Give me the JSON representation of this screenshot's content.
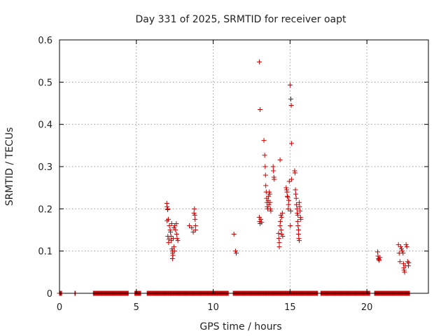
{
  "chart_data": {
    "type": "scatter",
    "title": "Day 331 of 2025, SRMTID for receiver oapt",
    "xlabel": "GPS time / hours",
    "ylabel": "SRMTID / TECUs",
    "xlim": [
      0,
      24
    ],
    "ylim": [
      0,
      0.6
    ],
    "x_ticks": [
      0,
      5,
      10,
      15,
      20
    ],
    "y_ticks": [
      0,
      0.1,
      0.2,
      0.3,
      0.4,
      0.5,
      0.6
    ],
    "x_tick_labels": [
      "0",
      "5",
      "10",
      "15",
      "20"
    ],
    "y_tick_labels": [
      "0",
      "0.1",
      "0.2",
      "0.3",
      "0.4",
      "0.5",
      "0.6"
    ],
    "grid": true,
    "marker": "+",
    "marker_color": "#cc0000",
    "zero_segments": [
      [
        0.0,
        0.15
      ],
      [
        1.0,
        1.05
      ],
      [
        2.2,
        4.5
      ],
      [
        4.9,
        5.3
      ],
      [
        5.7,
        11.0
      ],
      [
        11.3,
        16.8
      ],
      [
        17.0,
        20.2
      ],
      [
        20.5,
        22.8
      ]
    ],
    "points": [
      [
        6.98,
        0.213
      ],
      [
        7.0,
        0.205
      ],
      [
        7.03,
        0.198
      ],
      [
        7.05,
        0.2
      ],
      [
        7.08,
        0.175
      ],
      [
        7.0,
        0.172
      ],
      [
        7.05,
        0.135
      ],
      [
        7.1,
        0.12
      ],
      [
        7.12,
        0.128
      ],
      [
        7.15,
        0.16
      ],
      [
        7.2,
        0.15
      ],
      [
        7.22,
        0.145
      ],
      [
        7.25,
        0.135
      ],
      [
        7.27,
        0.125
      ],
      [
        7.3,
        0.165
      ],
      [
        7.32,
        0.105
      ],
      [
        7.35,
        0.1
      ],
      [
        7.36,
        0.095
      ],
      [
        7.38,
        0.09
      ],
      [
        7.35,
        0.082
      ],
      [
        7.4,
        0.13
      ],
      [
        7.45,
        0.155
      ],
      [
        7.45,
        0.11
      ],
      [
        7.48,
        0.1
      ],
      [
        7.5,
        0.16
      ],
      [
        7.55,
        0.15
      ],
      [
        7.6,
        0.165
      ],
      [
        7.62,
        0.14
      ],
      [
        7.65,
        0.13
      ],
      [
        7.7,
        0.125
      ],
      [
        8.45,
        0.16
      ],
      [
        8.6,
        0.155
      ],
      [
        8.7,
        0.145
      ],
      [
        8.75,
        0.19
      ],
      [
        8.78,
        0.2
      ],
      [
        8.8,
        0.185
      ],
      [
        8.82,
        0.175
      ],
      [
        8.85,
        0.16
      ],
      [
        8.85,
        0.15
      ],
      [
        11.35,
        0.14
      ],
      [
        11.45,
        0.1
      ],
      [
        11.5,
        0.095
      ],
      [
        13.0,
        0.548
      ],
      [
        13.05,
        0.435
      ],
      [
        13.0,
        0.18
      ],
      [
        13.02,
        0.17
      ],
      [
        13.05,
        0.165
      ],
      [
        13.1,
        0.175
      ],
      [
        13.15,
        0.168
      ],
      [
        13.3,
        0.362
      ],
      [
        13.35,
        0.327
      ],
      [
        13.38,
        0.3
      ],
      [
        13.4,
        0.28
      ],
      [
        13.42,
        0.255
      ],
      [
        13.45,
        0.24
      ],
      [
        13.48,
        0.225
      ],
      [
        13.5,
        0.215
      ],
      [
        13.52,
        0.205
      ],
      [
        13.55,
        0.2
      ],
      [
        13.58,
        0.22
      ],
      [
        13.6,
        0.23
      ],
      [
        13.62,
        0.21
      ],
      [
        13.65,
        0.24
      ],
      [
        13.68,
        0.235
      ],
      [
        13.7,
        0.215
      ],
      [
        13.72,
        0.2
      ],
      [
        13.75,
        0.195
      ],
      [
        13.9,
        0.3
      ],
      [
        13.92,
        0.29
      ],
      [
        13.95,
        0.275
      ],
      [
        13.97,
        0.27
      ],
      [
        14.25,
        0.142
      ],
      [
        14.27,
        0.13
      ],
      [
        14.3,
        0.12
      ],
      [
        14.3,
        0.11
      ],
      [
        14.35,
        0.316
      ],
      [
        14.35,
        0.16
      ],
      [
        14.37,
        0.17
      ],
      [
        14.4,
        0.185
      ],
      [
        14.42,
        0.15
      ],
      [
        14.45,
        0.14
      ],
      [
        14.45,
        0.18
      ],
      [
        14.5,
        0.19
      ],
      [
        14.52,
        0.135
      ],
      [
        14.75,
        0.25
      ],
      [
        14.78,
        0.245
      ],
      [
        14.8,
        0.24
      ],
      [
        14.82,
        0.23
      ],
      [
        14.85,
        0.228
      ],
      [
        14.88,
        0.2
      ],
      [
        14.9,
        0.21
      ],
      [
        14.92,
        0.22
      ],
      [
        14.95,
        0.265
      ],
      [
        15.0,
        0.493
      ],
      [
        15.05,
        0.46
      ],
      [
        15.08,
        0.445
      ],
      [
        15.1,
        0.355
      ],
      [
        15.05,
        0.195
      ],
      [
        15.1,
        0.27
      ],
      [
        15.02,
        0.16
      ],
      [
        15.3,
        0.29
      ],
      [
        15.32,
        0.285
      ],
      [
        15.35,
        0.245
      ],
      [
        15.37,
        0.235
      ],
      [
        15.4,
        0.225
      ],
      [
        15.42,
        0.21
      ],
      [
        15.45,
        0.2
      ],
      [
        15.47,
        0.19
      ],
      [
        15.5,
        0.185
      ],
      [
        15.5,
        0.17
      ],
      [
        15.52,
        0.16
      ],
      [
        15.55,
        0.15
      ],
      [
        15.55,
        0.14
      ],
      [
        15.57,
        0.13
      ],
      [
        15.6,
        0.125
      ],
      [
        15.6,
        0.215
      ],
      [
        15.62,
        0.205
      ],
      [
        15.65,
        0.195
      ],
      [
        15.68,
        0.18
      ],
      [
        15.7,
        0.175
      ],
      [
        20.7,
        0.098
      ],
      [
        20.72,
        0.088
      ],
      [
        20.75,
        0.082
      ],
      [
        20.78,
        0.08
      ],
      [
        20.8,
        0.078
      ],
      [
        20.85,
        0.085
      ],
      [
        22.05,
        0.115
      ],
      [
        22.1,
        0.095
      ],
      [
        22.15,
        0.075
      ],
      [
        22.2,
        0.11
      ],
      [
        22.25,
        0.105
      ],
      [
        22.3,
        0.1
      ],
      [
        22.35,
        0.095
      ],
      [
        22.38,
        0.07
      ],
      [
        22.4,
        0.06
      ],
      [
        22.42,
        0.055
      ],
      [
        22.45,
        0.05
      ],
      [
        22.5,
        0.065
      ],
      [
        22.55,
        0.115
      ],
      [
        22.6,
        0.11
      ],
      [
        22.65,
        0.075
      ],
      [
        22.7,
        0.065
      ],
      [
        22.72,
        0.072
      ]
    ]
  }
}
